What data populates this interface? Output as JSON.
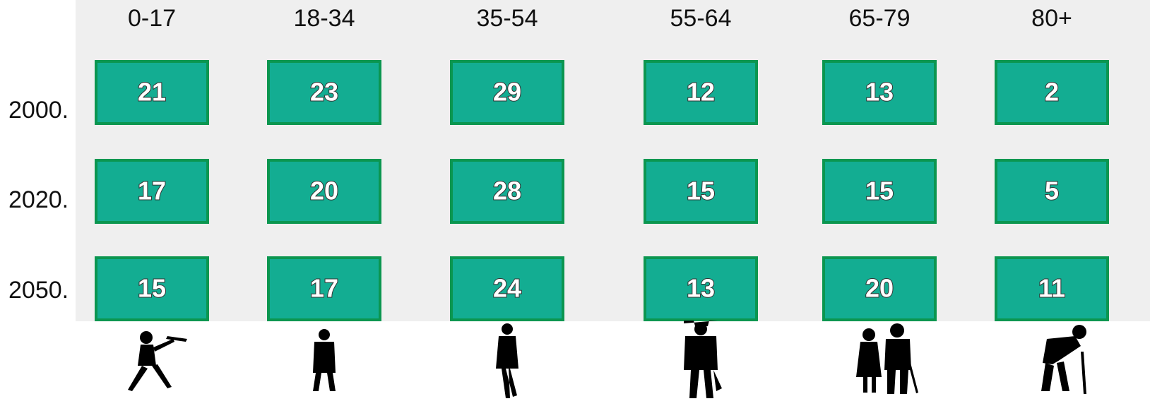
{
  "table": {
    "columns": [
      "0-17",
      "18-34",
      "35-54",
      "55-64",
      "65-79",
      "80+"
    ],
    "rows": [
      {
        "label": "2000.",
        "values": [
          21,
          23,
          29,
          12,
          13,
          2
        ]
      },
      {
        "label": "2020.",
        "values": [
          17,
          20,
          28,
          15,
          15,
          5
        ]
      },
      {
        "label": "2050.",
        "values": [
          15,
          17,
          24,
          13,
          20,
          11
        ]
      }
    ]
  }
}
